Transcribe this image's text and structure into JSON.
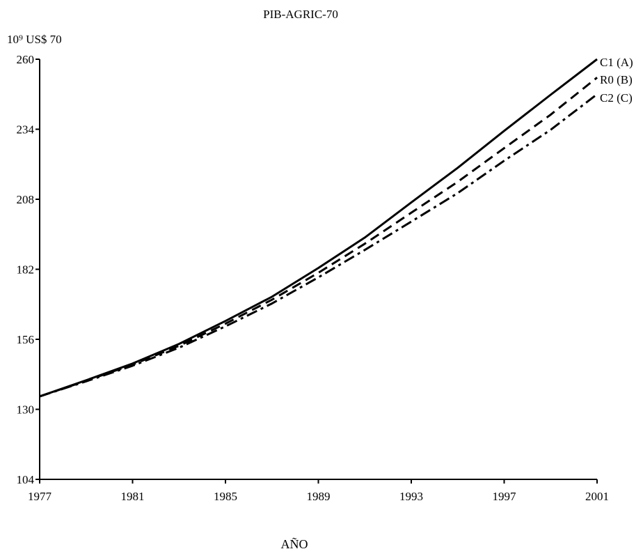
{
  "chart_data": {
    "type": "line",
    "title": "PIB-AGRIC-70",
    "ylabel": "10⁹ US$ 70",
    "xlabel": "AÑO",
    "xlim": [
      1977,
      2001
    ],
    "ylim": [
      104,
      260
    ],
    "x_ticks": [
      1977,
      1981,
      1985,
      1989,
      1993,
      1997,
      2001
    ],
    "y_ticks": [
      104,
      130,
      156,
      182,
      208,
      234,
      260
    ],
    "grid": false,
    "legend_placement": "right-end-of-lines",
    "x": [
      1977,
      1979,
      1981,
      1983,
      1985,
      1987,
      1989,
      1991,
      1993,
      1995,
      1997,
      1999,
      2001
    ],
    "series": [
      {
        "name": "C1 (A)",
        "style": "solid",
        "values": [
          134.8,
          140.8,
          147.0,
          154.3,
          162.8,
          171.8,
          182.5,
          193.8,
          206.8,
          219.7,
          233.4,
          246.8,
          260.0
        ]
      },
      {
        "name": "R0 (B)",
        "style": "dashed",
        "values": [
          134.8,
          140.6,
          146.6,
          153.6,
          161.8,
          170.7,
          180.7,
          191.5,
          203.0,
          214.5,
          227.0,
          239.4,
          253.2
        ]
      },
      {
        "name": "C2 (C)",
        "style": "dashdot",
        "values": [
          134.8,
          140.4,
          146.2,
          152.9,
          160.8,
          169.3,
          179.0,
          189.2,
          199.7,
          210.3,
          222.3,
          233.8,
          247.0
        ]
      }
    ]
  }
}
